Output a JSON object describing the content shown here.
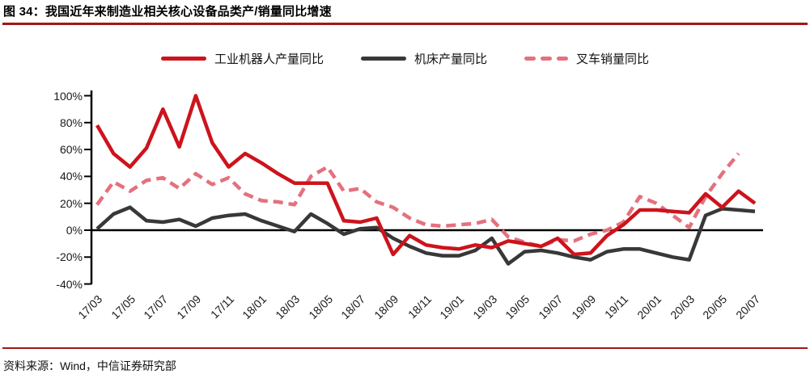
{
  "page": {
    "title": "图 34：我国近年来制造业相关核心设备品类产/销量同比增速",
    "source": "资料来源：Wind，中信证券研究部"
  },
  "colors": {
    "robot_line": "#cd131c",
    "machine_tool_line": "#383838",
    "forklift_line": "#e4717d",
    "heading_rule": "#a01818",
    "axis": "#000000"
  },
  "chart_data": {
    "type": "line",
    "title": "图 34：我国近年来制造业相关核心设备品类产/销量同比增速",
    "xlabel": "",
    "ylabel": "",
    "ylim": [
      -40,
      100
    ],
    "y_ticks": [
      100,
      80,
      60,
      40,
      20,
      0,
      -20,
      -40
    ],
    "y_tick_suffix": "%",
    "grid": false,
    "zero_line": true,
    "legend_position": "top",
    "x": [
      "17/03",
      "17/04",
      "17/05",
      "17/06",
      "17/07",
      "17/08",
      "17/09",
      "17/10",
      "17/11",
      "17/12",
      "18/01",
      "18/02",
      "18/03",
      "18/04",
      "18/05",
      "18/06",
      "18/07",
      "18/08",
      "18/09",
      "18/10",
      "18/11",
      "18/12",
      "19/01",
      "19/02",
      "19/03",
      "19/04",
      "19/05",
      "19/06",
      "19/07",
      "19/08",
      "19/09",
      "19/10",
      "19/11",
      "19/12",
      "20/01",
      "20/02",
      "20/03",
      "20/04",
      "20/05",
      "20/06",
      "20/07"
    ],
    "x_tick_labels": [
      "17/03",
      "17/05",
      "17/07",
      "17/09",
      "17/11",
      "18/01",
      "18/03",
      "18/05",
      "18/07",
      "18/09",
      "18/11",
      "19/01",
      "19/03",
      "19/05",
      "19/07",
      "19/09",
      "19/11",
      "20/01",
      "20/03",
      "20/05",
      "20/07"
    ],
    "series": [
      {
        "name": "工业机器人产量同比",
        "style": "solid",
        "color": "#cd131c",
        "values": [
          78,
          57,
          47,
          61,
          90,
          62,
          100,
          65,
          47,
          57,
          50,
          42,
          35,
          35,
          35,
          7,
          6,
          9,
          -18,
          -4,
          -11,
          -13,
          -14,
          -11,
          -13,
          -8,
          -10,
          -12,
          -6,
          -18,
          -17,
          -4,
          4,
          15,
          15,
          14,
          13,
          27,
          17,
          29,
          20
        ]
      },
      {
        "name": "机床产量同比",
        "style": "solid",
        "color": "#383838",
        "values": [
          1,
          12,
          17,
          7,
          6,
          8,
          3,
          9,
          11,
          12,
          7,
          3,
          -1,
          12,
          5,
          -3,
          1,
          2,
          -6,
          -12,
          -17,
          -19,
          -19,
          -15,
          -6,
          -25,
          -16,
          -15,
          -17,
          -20,
          -22,
          -16,
          -14,
          -14,
          -17,
          -20,
          -22,
          11,
          16,
          15,
          14
        ]
      },
      {
        "name": "叉车销量同比",
        "style": "dashed",
        "color": "#e4717d",
        "values": [
          19,
          36,
          29,
          37,
          39,
          31,
          42,
          34,
          39,
          27,
          22,
          21,
          19,
          40,
          47,
          29,
          31,
          21,
          17,
          9,
          4,
          3,
          4,
          5,
          8,
          -5,
          -9,
          -12,
          -7,
          -8,
          -3,
          0,
          6,
          25,
          20,
          11,
          2,
          25,
          42,
          57,
          null
        ]
      }
    ]
  }
}
